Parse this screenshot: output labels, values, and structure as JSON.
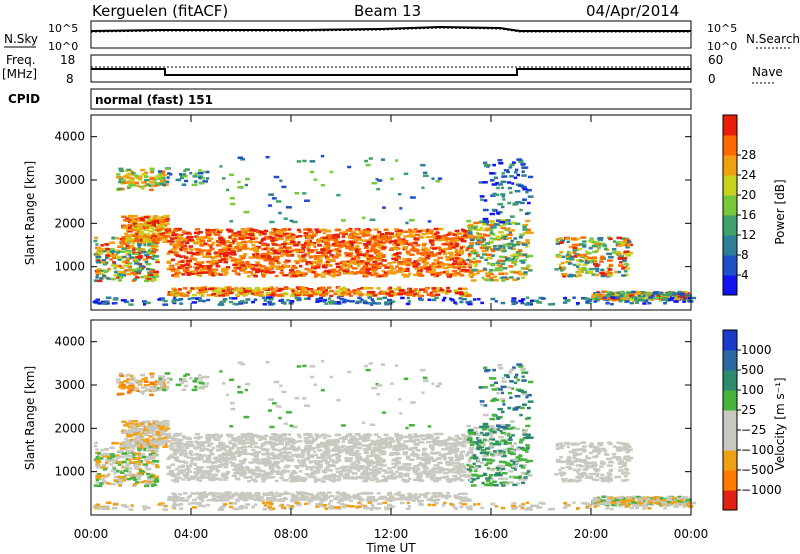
{
  "header": {
    "station": "Kerguelen (fitACF)",
    "beam": "Beam 13",
    "date": "04/Apr/2014"
  },
  "top_panels": {
    "nsky_label": "N.Sky",
    "nsky_ticks": [
      "10^5",
      "10^0"
    ],
    "nsearch_label": "N.Search",
    "freq_label_1": "Freq.",
    "freq_label_2": "[MHz]",
    "freq_ticks": [
      "18",
      "8"
    ],
    "nave_label": "Nave",
    "nave_ticks": [
      "60",
      "0"
    ],
    "cpid_label": "CPID",
    "cpid_value": "normal (fast) 151"
  },
  "colors": {
    "power_scale": [
      "#1414f0",
      "#2050c8",
      "#2e7e9a",
      "#3fa06c",
      "#78c83c",
      "#c8d21e",
      "#f0a010",
      "#ff6a00",
      "#e61e0a"
    ],
    "velocity_scale": [
      "#1a3cc8",
      "#2a6aa0",
      "#2e8a6e",
      "#46b43c",
      "#c8c8c0",
      "#c8c8c0",
      "#f0a014",
      "#ff7a00",
      "#e02010"
    ]
  },
  "chart_data": [
    {
      "type": "heatmap",
      "panel": "power",
      "ylabel": "Slant Range [km]",
      "xlabel": "Time UT",
      "x_ticks": [
        "00:00",
        "04:00",
        "08:00",
        "12:00",
        "16:00",
        "20:00",
        "00:00"
      ],
      "y_ticks": [
        "1000",
        "2000",
        "3000",
        "4000"
      ],
      "ylim": [
        0,
        4500
      ],
      "xlim_hours": [
        0,
        24
      ],
      "colorbar_label": "Power [dB]",
      "colorbar_ticks": [
        "4",
        "8",
        "12",
        "16",
        "20",
        "24",
        "28"
      ],
      "colorbar_range": [
        0,
        32
      ]
    },
    {
      "type": "heatmap",
      "panel": "velocity",
      "ylabel": "Slant Range [km]",
      "xlabel": "Time UT",
      "x_ticks": [
        "00:00",
        "04:00",
        "08:00",
        "12:00",
        "16:00",
        "20:00",
        "00:00"
      ],
      "y_ticks": [
        "1000",
        "2000",
        "3000",
        "4000"
      ],
      "ylim": [
        0,
        4500
      ],
      "xlim_hours": [
        0,
        24
      ],
      "colorbar_label": "Velocity [m s⁻¹]",
      "colorbar_ticks": [
        "1000",
        "500",
        "100",
        "25",
        "−25",
        "−100",
        "−500",
        "−1000"
      ]
    }
  ]
}
